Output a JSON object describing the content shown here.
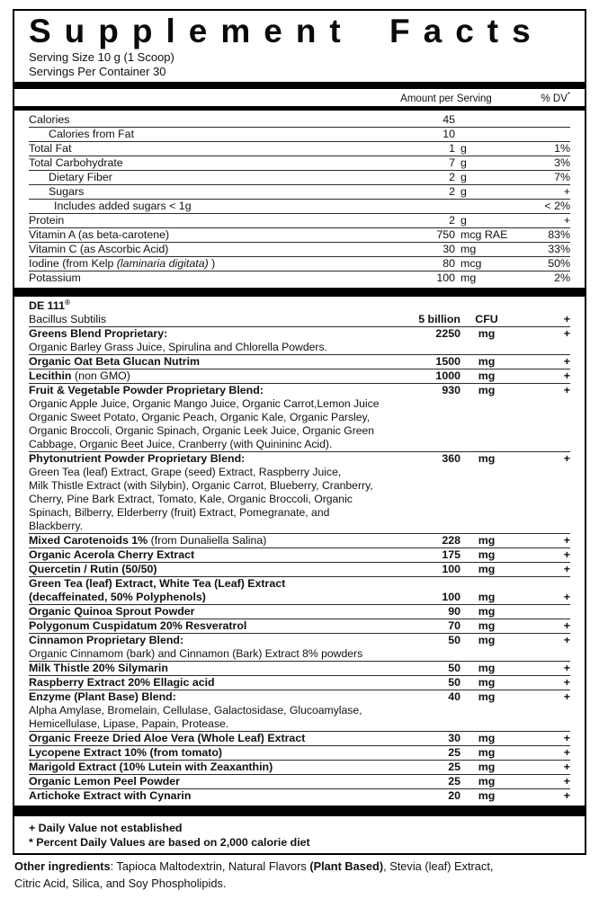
{
  "label": {
    "title": "Supplement Facts",
    "serving_size": "Serving Size 10 g (1 Scoop)",
    "servings_per_container": "Servings Per Container 30",
    "columns": {
      "amount_header": "Amount per Serving",
      "dv_header_runs": [
        {
          "t": "% DV"
        },
        {
          "t": "*",
          "sup": true
        }
      ]
    },
    "nutrition_rows": [
      {
        "name": [
          {
            "t": "Calories"
          }
        ],
        "indent": 0,
        "num": "45",
        "unit": "",
        "dv": ""
      },
      {
        "name": [
          {
            "t": "Calories from Fat"
          }
        ],
        "indent": 1,
        "num": "10",
        "unit": "",
        "dv": ""
      },
      {
        "name": [
          {
            "t": "Total Fat"
          }
        ],
        "indent": 0,
        "num": "1",
        "unit": "g",
        "dv": "1%"
      },
      {
        "name": [
          {
            "t": "Total Carbohydrate"
          }
        ],
        "indent": 0,
        "num": "7",
        "unit": "g",
        "dv": "3%"
      },
      {
        "name": [
          {
            "t": "Dietary Fiber"
          }
        ],
        "indent": 1,
        "num": "2",
        "unit": "g",
        "dv": "7%"
      },
      {
        "name": [
          {
            "t": "Sugars"
          }
        ],
        "indent": 1,
        "num": "2",
        "unit": "g",
        "dv": "+"
      },
      {
        "name": [
          {
            "t": "Includes added sugars < 1g"
          }
        ],
        "indent": 2,
        "num": "",
        "unit": "",
        "dv": "< 2%"
      },
      {
        "name": [
          {
            "t": "Protein"
          }
        ],
        "indent": 0,
        "num": "2",
        "unit": "g",
        "dv": "+"
      },
      {
        "name": [
          {
            "t": "Vitamin A (as beta-carotene)"
          }
        ],
        "indent": 0,
        "num": "750",
        "unit": "mcg RAE",
        "dv": "83%"
      },
      {
        "name": [
          {
            "t": "Vitamin C (as Ascorbic Acid)"
          }
        ],
        "indent": 0,
        "num": "30",
        "unit": "mg",
        "dv": "33%"
      },
      {
        "name": [
          {
            "t": "Iodine (from Kelp "
          },
          {
            "t": "(laminaria digitata)",
            "i": true
          },
          {
            "t": " )"
          }
        ],
        "indent": 0,
        "num": "80",
        "unit": "mcg",
        "dv": "50%"
      },
      {
        "name": [
          {
            "t": "Potassium"
          }
        ],
        "indent": 0,
        "num": "100",
        "unit": "mg",
        "dv": "2%"
      }
    ],
    "ingredient_items": [
      {
        "lines": [
          {
            "runs": [
              {
                "t": "DE 111",
                "b": true
              },
              {
                "t": "®",
                "b": true,
                "sup": true
              }
            ]
          },
          {
            "runs": [
              {
                "t": "Bacillus Subtilis"
              }
            ],
            "num": "5 billion",
            "unit": "CFU",
            "dv": "+"
          }
        ]
      },
      {
        "lines": [
          {
            "runs": [
              {
                "t": "Greens Blend Proprietary:",
                "b": true
              }
            ],
            "num": "2250",
            "unit": "mg",
            "dv": "+"
          }
        ],
        "desc": [
          "Organic Barley Grass Juice, Spirulina and Chlorella Powders."
        ]
      },
      {
        "lines": [
          {
            "runs": [
              {
                "t": "Organic Oat Beta Glucan Nutrim",
                "b": true
              }
            ],
            "num": "1500",
            "unit": "mg",
            "dv": "+"
          }
        ]
      },
      {
        "lines": [
          {
            "runs": [
              {
                "t": "Lecithin",
                "b": true
              },
              {
                "t": " (non GMO)"
              }
            ],
            "num": "1000",
            "unit": "mg",
            "dv": "+"
          }
        ]
      },
      {
        "lines": [
          {
            "runs": [
              {
                "t": "Fruit & Vegetable Powder Proprietary Blend:",
                "b": true
              }
            ],
            "num": "930",
            "unit": "mg",
            "dv": "+"
          }
        ],
        "desc": [
          "Organic Apple Juice, Organic Mango Juice, Organic Carrot,Lemon Juice",
          "Organic Sweet Potato, Organic Peach, Organic Kale, Organic Parsley,",
          "Organic Broccoli, Organic Spinach, Organic Leek Juice, Organic Green",
          "Cabbage, Organic Beet Juice, Cranberry (with Quinininc Acid)."
        ]
      },
      {
        "lines": [
          {
            "runs": [
              {
                "t": "Phytonutrient Powder Proprietary Blend:",
                "b": true
              }
            ],
            "num": "360",
            "unit": "mg",
            "dv": "+"
          }
        ],
        "desc": [
          "Green Tea (leaf) Extract, Grape (seed) Extract, Raspberry Juice,",
          "Milk Thistle Extract (with Silybin), Organic Carrot, Blueberry, Cranberry,",
          "Cherry, Pine Bark Extract, Tomato, Kale, Organic Broccoli, Organic",
          "Spinach, Bilberry, Elderberry (fruit) Extract, Pomegranate, and",
          "Blackberry."
        ]
      },
      {
        "lines": [
          {
            "runs": [
              {
                "t": "Mixed Carotenoids 1%",
                "b": true
              },
              {
                "t": " (from Dunaliella Salina)"
              }
            ],
            "num": "228",
            "unit": "mg",
            "dv": "+"
          }
        ]
      },
      {
        "lines": [
          {
            "runs": [
              {
                "t": "Organic Acerola Cherry Extract",
                "b": true
              }
            ],
            "num": "175",
            "unit": "mg",
            "dv": "+"
          }
        ]
      },
      {
        "lines": [
          {
            "runs": [
              {
                "t": "Quercetin / Rutin (50/50)",
                "b": true
              }
            ],
            "num": "100",
            "unit": "mg",
            "dv": "+"
          }
        ]
      },
      {
        "lines": [
          {
            "runs": [
              {
                "t": "Green Tea (leaf) Extract, White Tea (Leaf) Extract",
                "b": true
              }
            ]
          },
          {
            "runs": [
              {
                "t": "(decaffeinated, 50% Polyphenols)",
                "b": true
              }
            ],
            "num": "100",
            "unit": "mg",
            "dv": "+"
          }
        ]
      },
      {
        "lines": [
          {
            "runs": [
              {
                "t": "Organic Quinoa Sprout Powder",
                "b": true
              }
            ],
            "num": "90",
            "unit": "mg",
            "dv": ""
          }
        ]
      },
      {
        "lines": [
          {
            "runs": [
              {
                "t": "Polygonum Cuspidatum 20% Resveratrol",
                "b": true
              }
            ],
            "num": "70",
            "unit": "mg",
            "dv": "+"
          }
        ]
      },
      {
        "lines": [
          {
            "runs": [
              {
                "t": "Cinnamon Proprietary Blend:",
                "b": true
              }
            ],
            "num": "50",
            "unit": "mg",
            "dv": "+"
          }
        ],
        "desc": [
          "Organic Cinnamom (bark) and Cinnamon (Bark) Extract 8% powders"
        ]
      },
      {
        "lines": [
          {
            "runs": [
              {
                "t": "Milk Thistle 20% Silymarin",
                "b": true
              }
            ],
            "num": "50",
            "unit": "mg",
            "dv": "+"
          }
        ]
      },
      {
        "lines": [
          {
            "runs": [
              {
                "t": "Raspberry Extract 20% Ellagic acid",
                "b": true
              }
            ],
            "num": "50",
            "unit": "mg",
            "dv": "+"
          }
        ]
      },
      {
        "lines": [
          {
            "runs": [
              {
                "t": "Enzyme (Plant Base) Blend:",
                "b": true
              }
            ],
            "num": "40",
            "unit": "mg",
            "dv": "+"
          }
        ],
        "desc": [
          "Alpha Amylase, Bromelain, Cellulase, Galactosidase,  Glucoamylase,",
          "Hemicellulase, Lipase, Papain, Protease."
        ]
      },
      {
        "lines": [
          {
            "runs": [
              {
                "t": "Organic Freeze Dried Aloe Vera  (Whole Leaf) Extract",
                "b": true
              }
            ],
            "num": "30",
            "unit": "mg",
            "dv": "+"
          }
        ]
      },
      {
        "lines": [
          {
            "runs": [
              {
                "t": "Lycopene Extract 10% (from tomato)",
                "b": true
              }
            ],
            "num": "25",
            "unit": "mg",
            "dv": "+"
          }
        ]
      },
      {
        "lines": [
          {
            "runs": [
              {
                "t": "Marigold Extract (10% Lutein with Zeaxanthin)",
                "b": true
              }
            ],
            "num": "25",
            "unit": "mg",
            "dv": "+"
          }
        ]
      },
      {
        "lines": [
          {
            "runs": [
              {
                "t": "Organic Lemon Peel Powder",
                "b": true
              }
            ],
            "num": "25",
            "unit": "mg",
            "dv": "+"
          }
        ]
      },
      {
        "lines": [
          {
            "runs": [
              {
                "t": "Artichoke Extract with Cynarin",
                "b": true
              }
            ],
            "num": "20",
            "unit": "mg",
            "dv": "+"
          }
        ]
      }
    ],
    "footnotes": [
      "+ Daily Value not established",
      "*  Percent Daily Values are based on 2,000 calorie diet"
    ],
    "other_ingredients_lines": [
      [
        {
          "t": "Other ingredients",
          "b": true
        },
        {
          "t": ":  Tapioca Maltodextrin, Natural Flavors "
        },
        {
          "t": "(Plant Based)",
          "b": true
        },
        {
          "t": ", Stevia (leaf) Extract,"
        }
      ],
      [
        {
          "t": "Citric Acid, Silica, and Soy Phospholipids."
        }
      ]
    ]
  }
}
